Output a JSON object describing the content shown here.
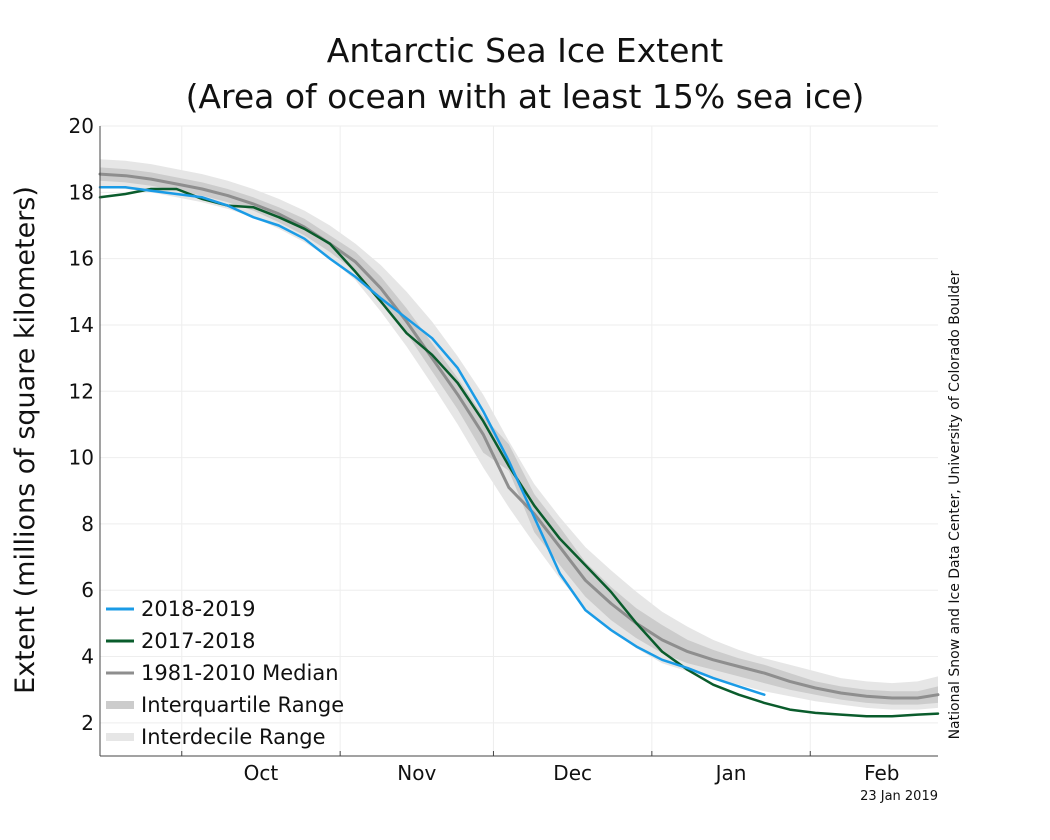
{
  "chart_data": {
    "type": "line",
    "title_lines": [
      "Antarctic Sea Ice Extent",
      "(Area of ocean with at least 15% sea ice)"
    ],
    "ylabel": "Extent (millions of square kilometers)",
    "xlabel": "",
    "ylim": [
      1,
      20
    ],
    "yticks": [
      2,
      4,
      6,
      8,
      10,
      12,
      14,
      16,
      18,
      20
    ],
    "xlim": [
      "Sep 15",
      "Feb 26"
    ],
    "months": [
      "Oct",
      "Nov",
      "Dec",
      "Jan",
      "Feb"
    ],
    "grid": true,
    "legend_position": "bottom-left",
    "credit": "National Snow and Ice Data Center, University of Colorado Boulder",
    "date_note": "23 Jan 2019",
    "colors": {
      "2018-2019": "#1a9be6",
      "2017-2018": "#0a5c2c",
      "median": "#8e8e8e",
      "interquartile": "#cccccc",
      "interdecile": "#e6e6e6",
      "grid": "#eeeeee",
      "axis": "#444444"
    },
    "series": [
      {
        "name": "2018-2019",
        "x": [
          "Sep 15",
          "Sep 20",
          "Sep 25",
          "Sep 30",
          "Oct 5",
          "Oct 10",
          "Oct 15",
          "Oct 20",
          "Oct 25",
          "Oct 30",
          "Nov 4",
          "Nov 9",
          "Nov 14",
          "Nov 19",
          "Nov 24",
          "Nov 29",
          "Dec 4",
          "Dec 9",
          "Dec 14",
          "Dec 19",
          "Dec 24",
          "Dec 29",
          "Jan 3",
          "Jan 8",
          "Jan 13",
          "Jan 18",
          "Jan 23"
        ],
        "values": [
          18.15,
          18.15,
          18.05,
          17.95,
          17.85,
          17.6,
          17.25,
          17.0,
          16.6,
          16.0,
          15.45,
          14.8,
          14.2,
          13.6,
          12.7,
          11.4,
          9.9,
          8.2,
          6.5,
          5.4,
          4.8,
          4.3,
          3.9,
          3.65,
          3.35,
          3.1,
          2.85
        ]
      },
      {
        "name": "2017-2018",
        "x": [
          "Sep 15",
          "Sep 20",
          "Sep 25",
          "Sep 30",
          "Oct 5",
          "Oct 10",
          "Oct 15",
          "Oct 20",
          "Oct 25",
          "Oct 30",
          "Nov 4",
          "Nov 9",
          "Nov 14",
          "Nov 19",
          "Nov 24",
          "Nov 29",
          "Dec 4",
          "Dec 9",
          "Dec 14",
          "Dec 19",
          "Dec 24",
          "Dec 29",
          "Jan 3",
          "Jan 8",
          "Jan 13",
          "Jan 18",
          "Jan 23",
          "Jan 28",
          "Feb 2",
          "Feb 7",
          "Feb 12",
          "Feb 17",
          "Feb 22",
          "Feb 26"
        ],
        "values": [
          17.85,
          17.95,
          18.1,
          18.1,
          17.8,
          17.6,
          17.55,
          17.25,
          16.9,
          16.45,
          15.6,
          14.7,
          13.75,
          13.1,
          12.25,
          11.1,
          9.75,
          8.55,
          7.55,
          6.75,
          5.95,
          5.0,
          4.15,
          3.6,
          3.15,
          2.85,
          2.6,
          2.4,
          2.3,
          2.25,
          2.2,
          2.2,
          2.25,
          2.28
        ]
      },
      {
        "name": "1981-2010 Median",
        "x": [
          "Sep 15",
          "Sep 20",
          "Sep 25",
          "Sep 30",
          "Oct 5",
          "Oct 10",
          "Oct 15",
          "Oct 20",
          "Oct 25",
          "Oct 30",
          "Nov 4",
          "Nov 9",
          "Nov 14",
          "Nov 19",
          "Nov 24",
          "Nov 29",
          "Dec 4",
          "Dec 9",
          "Dec 14",
          "Dec 19",
          "Dec 24",
          "Dec 29",
          "Jan 3",
          "Jan 8",
          "Jan 13",
          "Jan 18",
          "Jan 23",
          "Jan 28",
          "Feb 2",
          "Feb 7",
          "Feb 12",
          "Feb 17",
          "Feb 22",
          "Feb 26"
        ],
        "values": [
          18.55,
          18.5,
          18.4,
          18.25,
          18.1,
          17.9,
          17.65,
          17.35,
          16.95,
          16.45,
          15.9,
          15.1,
          14.1,
          13.0,
          11.9,
          10.7,
          9.1,
          8.3,
          7.3,
          6.3,
          5.6,
          5.0,
          4.5,
          4.15,
          3.9,
          3.7,
          3.5,
          3.25,
          3.05,
          2.9,
          2.8,
          2.75,
          2.75,
          2.85
        ]
      },
      {
        "name": "Interquartile Range",
        "x": [
          "Sep 15",
          "Sep 20",
          "Sep 25",
          "Sep 30",
          "Oct 5",
          "Oct 10",
          "Oct 15",
          "Oct 20",
          "Oct 25",
          "Oct 30",
          "Nov 4",
          "Nov 9",
          "Nov 14",
          "Nov 19",
          "Nov 24",
          "Nov 29",
          "Dec 4",
          "Dec 9",
          "Dec 14",
          "Dec 19",
          "Dec 24",
          "Dec 29",
          "Jan 3",
          "Jan 8",
          "Jan 13",
          "Jan 18",
          "Jan 23",
          "Jan 28",
          "Feb 2",
          "Feb 7",
          "Feb 12",
          "Feb 17",
          "Feb 22",
          "Feb 26"
        ],
        "low": [
          18.35,
          18.3,
          18.2,
          18.05,
          17.9,
          17.7,
          17.45,
          17.1,
          16.7,
          16.2,
          15.6,
          14.75,
          13.75,
          12.6,
          11.45,
          10.15,
          9.6,
          7.75,
          6.75,
          5.8,
          5.1,
          4.55,
          4.1,
          3.8,
          3.6,
          3.4,
          3.2,
          3.0,
          2.85,
          2.7,
          2.6,
          2.55,
          2.55,
          2.6
        ],
        "high": [
          18.75,
          18.7,
          18.6,
          18.45,
          18.3,
          18.1,
          17.85,
          17.55,
          17.2,
          16.7,
          16.2,
          15.45,
          14.5,
          13.45,
          12.4,
          11.25,
          10.4,
          8.9,
          7.9,
          6.85,
          6.1,
          5.45,
          4.95,
          4.5,
          4.2,
          3.95,
          3.75,
          3.5,
          3.25,
          3.1,
          3.0,
          2.95,
          2.95,
          3.1
        ]
      },
      {
        "name": "Interdecile Range",
        "x": [
          "Sep 15",
          "Sep 20",
          "Sep 25",
          "Sep 30",
          "Oct 5",
          "Oct 10",
          "Oct 15",
          "Oct 20",
          "Oct 25",
          "Oct 30",
          "Nov 4",
          "Nov 9",
          "Nov 14",
          "Nov 19",
          "Nov 24",
          "Nov 29",
          "Dec 4",
          "Dec 9",
          "Dec 14",
          "Dec 19",
          "Dec 24",
          "Dec 29",
          "Jan 3",
          "Jan 8",
          "Jan 13",
          "Jan 18",
          "Jan 23",
          "Jan 28",
          "Feb 2",
          "Feb 7",
          "Feb 12",
          "Feb 17",
          "Feb 22",
          "Feb 26"
        ],
        "low": [
          18.15,
          18.1,
          18.0,
          17.85,
          17.7,
          17.5,
          17.25,
          16.9,
          16.5,
          16.0,
          15.35,
          14.4,
          13.35,
          12.2,
          11.0,
          9.7,
          8.5,
          7.4,
          6.35,
          5.45,
          4.75,
          4.25,
          3.8,
          3.55,
          3.35,
          3.15,
          2.95,
          2.8,
          2.65,
          2.55,
          2.45,
          2.4,
          2.4,
          2.45
        ],
        "high": [
          19.0,
          18.95,
          18.85,
          18.7,
          18.55,
          18.35,
          18.1,
          17.8,
          17.45,
          17.0,
          16.45,
          15.8,
          15.0,
          14.1,
          13.05,
          11.9,
          10.5,
          9.2,
          8.2,
          7.3,
          6.6,
          5.95,
          5.35,
          4.9,
          4.5,
          4.2,
          3.95,
          3.75,
          3.55,
          3.35,
          3.25,
          3.2,
          3.25,
          3.4
        ]
      }
    ]
  }
}
